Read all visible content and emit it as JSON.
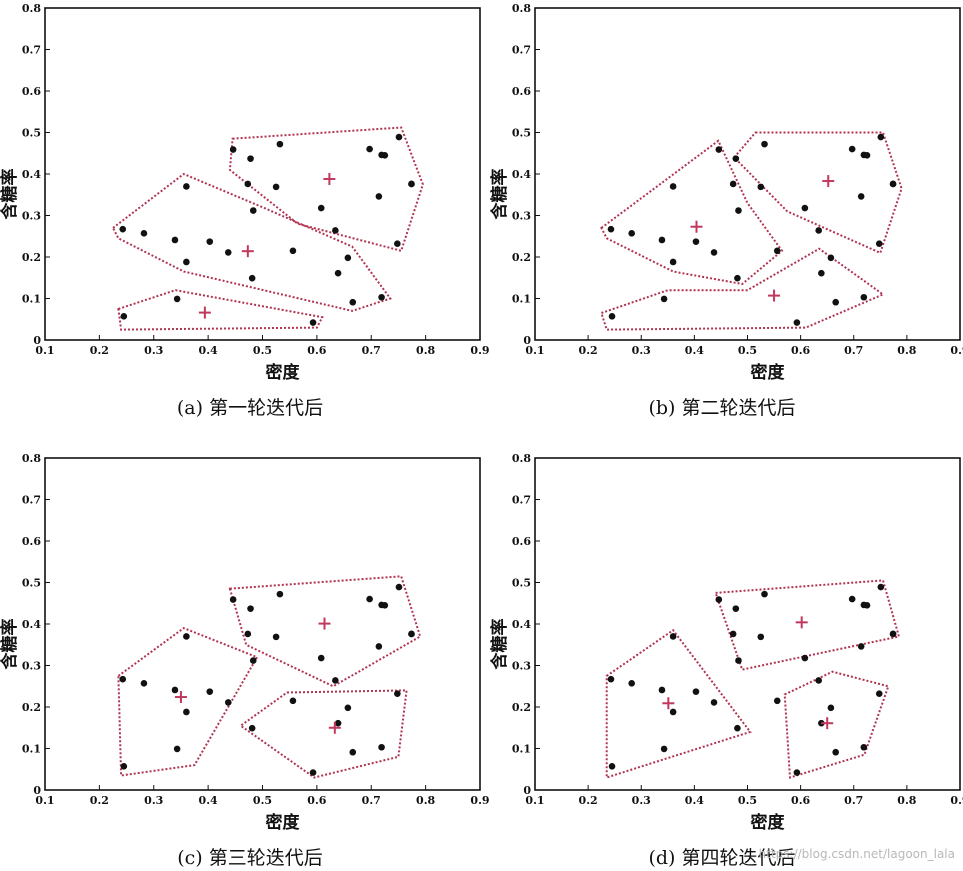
{
  "watermark": "https://blog.csdn.net/lagoon_lala",
  "colors": {
    "point": "#111111",
    "centroid": "#c0385c",
    "cluster_border": "#b0334f",
    "axis": "#111111"
  },
  "chart_data": [
    {
      "type": "scatter",
      "caption": "(a) 第一轮迭代后",
      "xlabel": "密度",
      "ylabel": "含糖率",
      "xlim": [
        0.1,
        0.9
      ],
      "ylim": [
        0,
        0.8
      ],
      "xticks": [
        "0.1",
        "0.2",
        "0.3",
        "0.4",
        "0.5",
        "0.6",
        "0.7",
        "0.8",
        "0.9"
      ],
      "yticks": [
        "0",
        "0.1",
        "0.2",
        "0.3",
        "0.4",
        "0.5",
        "0.6",
        "0.7",
        "0.8"
      ],
      "points": [
        [
          0.243,
          0.267
        ],
        [
          0.245,
          0.057
        ],
        [
          0.343,
          0.099
        ],
        [
          0.36,
          0.37
        ],
        [
          0.403,
          0.237
        ],
        [
          0.437,
          0.211
        ],
        [
          0.481,
          0.149
        ],
        [
          0.556,
          0.215
        ],
        [
          0.593,
          0.042
        ],
        [
          0.608,
          0.318
        ],
        [
          0.639,
          0.161
        ],
        [
          0.657,
          0.198
        ],
        [
          0.666,
          0.091
        ],
        [
          0.719,
          0.103
        ],
        [
          0.697,
          0.46
        ],
        [
          0.774,
          0.376
        ],
        [
          0.634,
          0.264
        ],
        [
          0.774,
          0.376
        ],
        [
          0.719,
          0.446
        ],
        [
          0.748,
          0.232
        ],
        [
          0.714,
          0.346
        ],
        [
          0.483,
          0.312
        ],
        [
          0.478,
          0.437
        ],
        [
          0.525,
          0.369
        ],
        [
          0.751,
          0.489
        ],
        [
          0.532,
          0.472
        ],
        [
          0.473,
          0.376
        ],
        [
          0.725,
          0.445
        ],
        [
          0.446,
          0.459
        ],
        [
          0.282,
          0.257
        ],
        [
          0.339,
          0.241
        ],
        [
          0.36,
          0.188
        ]
      ],
      "centroids": [
        [
          0.623,
          0.388
        ],
        [
          0.473,
          0.214
        ],
        [
          0.394,
          0.066
        ]
      ],
      "clusters": [
        [
          [
            0.445,
            0.485
          ],
          [
            0.755,
            0.512
          ],
          [
            0.795,
            0.375
          ],
          [
            0.755,
            0.215
          ],
          [
            0.565,
            0.28
          ],
          [
            0.44,
            0.41
          ]
        ],
        [
          [
            0.225,
            0.27
          ],
          [
            0.355,
            0.4
          ],
          [
            0.5,
            0.32
          ],
          [
            0.665,
            0.225
          ],
          [
            0.735,
            0.1
          ],
          [
            0.665,
            0.07
          ],
          [
            0.355,
            0.165
          ],
          [
            0.235,
            0.245
          ]
        ],
        [
          [
            0.235,
            0.075
          ],
          [
            0.34,
            0.12
          ],
          [
            0.61,
            0.055
          ],
          [
            0.6,
            0.03
          ],
          [
            0.24,
            0.025
          ]
        ]
      ]
    },
    {
      "type": "scatter",
      "caption": "(b) 第二轮迭代后",
      "xlabel": "密度",
      "ylabel": "含糖率",
      "xlim": [
        0.1,
        0.9
      ],
      "ylim": [
        0,
        0.8
      ],
      "xticks": [
        "0.1",
        "0.2",
        "0.3",
        "0.4",
        "0.5",
        "0.6",
        "0.7",
        "0.8",
        "0.9"
      ],
      "yticks": [
        "0",
        "0.1",
        "0.2",
        "0.3",
        "0.4",
        "0.5",
        "0.6",
        "0.7",
        "0.8"
      ],
      "points": [
        [
          0.243,
          0.267
        ],
        [
          0.245,
          0.057
        ],
        [
          0.343,
          0.099
        ],
        [
          0.36,
          0.37
        ],
        [
          0.403,
          0.237
        ],
        [
          0.437,
          0.211
        ],
        [
          0.481,
          0.149
        ],
        [
          0.556,
          0.215
        ],
        [
          0.593,
          0.042
        ],
        [
          0.608,
          0.318
        ],
        [
          0.639,
          0.161
        ],
        [
          0.657,
          0.198
        ],
        [
          0.666,
          0.091
        ],
        [
          0.719,
          0.103
        ],
        [
          0.697,
          0.46
        ],
        [
          0.774,
          0.376
        ],
        [
          0.634,
          0.264
        ],
        [
          0.774,
          0.376
        ],
        [
          0.719,
          0.446
        ],
        [
          0.748,
          0.232
        ],
        [
          0.714,
          0.346
        ],
        [
          0.483,
          0.312
        ],
        [
          0.478,
          0.437
        ],
        [
          0.525,
          0.369
        ],
        [
          0.751,
          0.489
        ],
        [
          0.532,
          0.472
        ],
        [
          0.473,
          0.376
        ],
        [
          0.725,
          0.445
        ],
        [
          0.446,
          0.459
        ],
        [
          0.282,
          0.257
        ],
        [
          0.339,
          0.241
        ],
        [
          0.36,
          0.188
        ]
      ],
      "centroids": [
        [
          0.652,
          0.383
        ],
        [
          0.404,
          0.273
        ],
        [
          0.55,
          0.107
        ]
      ],
      "clusters": [
        [
          [
            0.515,
            0.5
          ],
          [
            0.755,
            0.5
          ],
          [
            0.79,
            0.365
          ],
          [
            0.75,
            0.21
          ],
          [
            0.575,
            0.31
          ],
          [
            0.475,
            0.44
          ]
        ],
        [
          [
            0.225,
            0.27
          ],
          [
            0.445,
            0.48
          ],
          [
            0.5,
            0.33
          ],
          [
            0.565,
            0.215
          ],
          [
            0.49,
            0.135
          ],
          [
            0.36,
            0.165
          ],
          [
            0.235,
            0.245
          ]
        ],
        [
          [
            0.225,
            0.065
          ],
          [
            0.35,
            0.12
          ],
          [
            0.5,
            0.12
          ],
          [
            0.635,
            0.22
          ],
          [
            0.755,
            0.11
          ],
          [
            0.61,
            0.03
          ],
          [
            0.235,
            0.025
          ]
        ]
      ]
    },
    {
      "type": "scatter",
      "caption": "(c) 第三轮迭代后",
      "xlabel": "密度",
      "ylabel": "含糖率",
      "xlim": [
        0.1,
        0.9
      ],
      "ylim": [
        0,
        0.8
      ],
      "xticks": [
        "0.1",
        "0.2",
        "0.3",
        "0.4",
        "0.5",
        "0.6",
        "0.7",
        "0.8",
        "0.9"
      ],
      "yticks": [
        "0",
        "0.1",
        "0.2",
        "0.3",
        "0.4",
        "0.5",
        "0.6",
        "0.7",
        "0.8"
      ],
      "points": [
        [
          0.243,
          0.267
        ],
        [
          0.245,
          0.057
        ],
        [
          0.343,
          0.099
        ],
        [
          0.36,
          0.37
        ],
        [
          0.403,
          0.237
        ],
        [
          0.437,
          0.211
        ],
        [
          0.481,
          0.149
        ],
        [
          0.556,
          0.215
        ],
        [
          0.593,
          0.042
        ],
        [
          0.608,
          0.318
        ],
        [
          0.639,
          0.161
        ],
        [
          0.657,
          0.198
        ],
        [
          0.666,
          0.091
        ],
        [
          0.719,
          0.103
        ],
        [
          0.697,
          0.46
        ],
        [
          0.774,
          0.376
        ],
        [
          0.634,
          0.264
        ],
        [
          0.774,
          0.376
        ],
        [
          0.719,
          0.446
        ],
        [
          0.748,
          0.232
        ],
        [
          0.714,
          0.346
        ],
        [
          0.483,
          0.312
        ],
        [
          0.478,
          0.437
        ],
        [
          0.525,
          0.369
        ],
        [
          0.751,
          0.489
        ],
        [
          0.532,
          0.472
        ],
        [
          0.473,
          0.376
        ],
        [
          0.725,
          0.445
        ],
        [
          0.446,
          0.459
        ],
        [
          0.282,
          0.257
        ],
        [
          0.339,
          0.241
        ],
        [
          0.36,
          0.188
        ]
      ],
      "centroids": [
        [
          0.614,
          0.401
        ],
        [
          0.35,
          0.224
        ],
        [
          0.633,
          0.15
        ]
      ],
      "clusters": [
        [
          [
            0.44,
            0.485
          ],
          [
            0.755,
            0.515
          ],
          [
            0.79,
            0.37
          ],
          [
            0.63,
            0.25
          ],
          [
            0.47,
            0.35
          ]
        ],
        [
          [
            0.235,
            0.275
          ],
          [
            0.355,
            0.39
          ],
          [
            0.49,
            0.32
          ],
          [
            0.375,
            0.06
          ],
          [
            0.24,
            0.035
          ]
        ],
        [
          [
            0.545,
            0.235
          ],
          [
            0.765,
            0.24
          ],
          [
            0.75,
            0.08
          ],
          [
            0.595,
            0.03
          ],
          [
            0.46,
            0.155
          ]
        ]
      ]
    },
    {
      "type": "scatter",
      "caption": "(d) 第四轮迭代后",
      "xlabel": "密度",
      "ylabel": "含糖率",
      "xlim": [
        0.1,
        0.9
      ],
      "ylim": [
        0,
        0.8
      ],
      "xticks": [
        "0.1",
        "0.2",
        "0.3",
        "0.4",
        "0.5",
        "0.6",
        "0.7",
        "0.8",
        "0.9"
      ],
      "yticks": [
        "0",
        "0.1",
        "0.2",
        "0.3",
        "0.4",
        "0.5",
        "0.6",
        "0.7",
        "0.8"
      ],
      "points": [
        [
          0.243,
          0.267
        ],
        [
          0.245,
          0.057
        ],
        [
          0.343,
          0.099
        ],
        [
          0.36,
          0.37
        ],
        [
          0.403,
          0.237
        ],
        [
          0.437,
          0.211
        ],
        [
          0.481,
          0.149
        ],
        [
          0.556,
          0.215
        ],
        [
          0.593,
          0.042
        ],
        [
          0.608,
          0.318
        ],
        [
          0.639,
          0.161
        ],
        [
          0.657,
          0.198
        ],
        [
          0.666,
          0.091
        ],
        [
          0.719,
          0.103
        ],
        [
          0.697,
          0.46
        ],
        [
          0.774,
          0.376
        ],
        [
          0.634,
          0.264
        ],
        [
          0.774,
          0.376
        ],
        [
          0.719,
          0.446
        ],
        [
          0.748,
          0.232
        ],
        [
          0.714,
          0.346
        ],
        [
          0.483,
          0.312
        ],
        [
          0.478,
          0.437
        ],
        [
          0.525,
          0.369
        ],
        [
          0.751,
          0.489
        ],
        [
          0.532,
          0.472
        ],
        [
          0.473,
          0.376
        ],
        [
          0.725,
          0.445
        ],
        [
          0.446,
          0.459
        ],
        [
          0.282,
          0.257
        ],
        [
          0.339,
          0.241
        ],
        [
          0.36,
          0.188
        ]
      ],
      "centroids": [
        [
          0.602,
          0.404
        ],
        [
          0.351,
          0.209
        ],
        [
          0.65,
          0.161
        ]
      ],
      "clusters": [
        [
          [
            0.44,
            0.475
          ],
          [
            0.755,
            0.505
          ],
          [
            0.785,
            0.37
          ],
          [
            0.49,
            0.29
          ]
        ],
        [
          [
            0.235,
            0.275
          ],
          [
            0.36,
            0.385
          ],
          [
            0.505,
            0.14
          ],
          [
            0.235,
            0.03
          ]
        ],
        [
          [
            0.57,
            0.23
          ],
          [
            0.66,
            0.285
          ],
          [
            0.765,
            0.25
          ],
          [
            0.72,
            0.085
          ],
          [
            0.58,
            0.03
          ]
        ]
      ]
    }
  ]
}
